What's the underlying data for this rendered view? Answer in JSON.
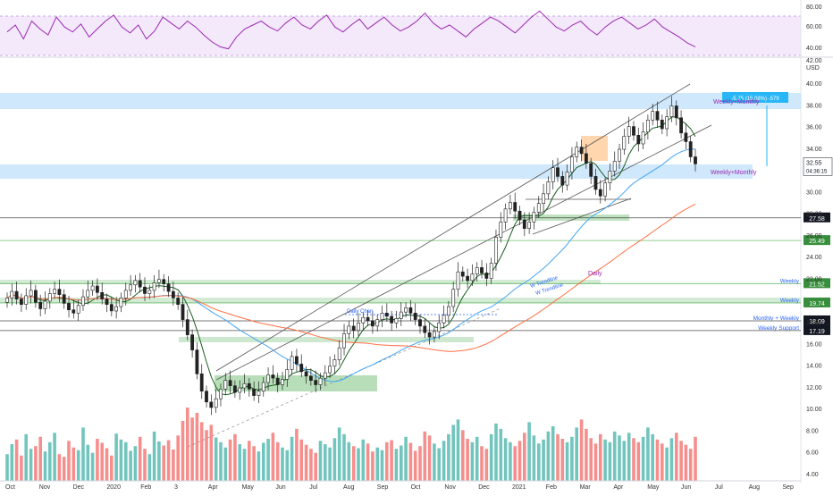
{
  "chart_data": {
    "type": "candlestick",
    "rsi": {
      "ticks": [
        "80.00",
        "60.00",
        "40.00"
      ],
      "series_values": [
        55,
        62,
        48,
        66,
        58,
        52,
        70,
        60,
        55,
        63,
        50,
        58,
        66,
        72,
        60,
        54,
        62,
        48,
        56,
        70,
        64,
        58,
        66,
        60,
        52,
        45,
        40,
        38,
        50,
        58,
        62,
        66,
        60,
        56,
        64,
        70,
        62,
        58,
        66,
        72,
        60,
        55,
        62,
        68,
        58,
        64,
        70,
        62,
        56,
        60,
        66,
        74,
        64,
        58,
        62,
        56,
        50,
        58,
        64,
        70,
        66,
        60,
        54,
        62,
        70,
        76,
        68,
        60,
        56,
        62,
        66,
        58,
        52,
        60,
        66,
        70,
        64,
        58,
        62,
        68,
        60,
        55,
        50,
        44,
        40
      ]
    },
    "price_axis": {
      "unit": "USD",
      "top_label": "42.00",
      "ticks": [
        "40.00",
        "38.00",
        "36.00",
        "34.00",
        "30.00",
        "28.00",
        "26.00",
        "24.00",
        "22.00",
        "18.00",
        "16.00",
        "14.00",
        "12.00",
        "10.00",
        "8.00",
        "6.00",
        "4.00"
      ],
      "ylim": [
        3,
        42
      ]
    },
    "x_axis": {
      "ticks": [
        "Oct",
        "Nov",
        "Dec",
        "2020",
        "Feb",
        "3",
        "Apr",
        "May",
        "Jun",
        "Jul",
        "Aug",
        "Sep",
        "Oct",
        "Nov",
        "Dec",
        "2021",
        "Feb",
        "Mar",
        "Apr",
        "May",
        "Jun",
        "Jul",
        "Aug",
        "Sep"
      ]
    },
    "last_price": {
      "value": 32.55,
      "label": "32.55",
      "countdown": "04:36:15"
    },
    "measure_label": "-5.75 (15.08%) -579",
    "levels": [
      {
        "value": 27.58,
        "label": "27.58"
      },
      {
        "value": 25.49,
        "label": "25.49"
      },
      {
        "value": 21.52,
        "label": "21.52",
        "name": "Weekly"
      },
      {
        "value": 19.74,
        "label": "19.74",
        "name": "Weekly"
      },
      {
        "value": 18.09,
        "label": "18.09",
        "name": "Monthly + Weekly"
      },
      {
        "value": 17.19,
        "label": "17.19",
        "name": "Weekly Support"
      }
    ],
    "zone_labels": {
      "upper": "Weekly+Monthly",
      "lower": "Weekly+Monthly",
      "daily": "Daily"
    },
    "trend_labels": [
      "W Trendline",
      "W Trendline"
    ],
    "channel_label": "Daily Chan",
    "closes": [
      20.2,
      20.8,
      20.1,
      19.6,
      20.4,
      20.9,
      19.8,
      19.2,
      19.9,
      20.6,
      21.0,
      20.5,
      19.7,
      19.1,
      18.8,
      19.5,
      20.3,
      20.9,
      21.3,
      20.7,
      20.1,
      19.6,
      19.0,
      19.4,
      20.2,
      20.9,
      21.4,
      21.8,
      21.2,
      20.6,
      20.9,
      21.6,
      21.9,
      21.5,
      20.8,
      20.2,
      19.6,
      18.2,
      16.8,
      15.4,
      13.2,
      11.6,
      10.6,
      10.1,
      10.9,
      11.8,
      12.6,
      12.1,
      11.5,
      11.9,
      12.3,
      11.8,
      11.2,
      11.6,
      12.4,
      13.1,
      12.8,
      12.2,
      12.7,
      13.6,
      14.8,
      14.1,
      13.4,
      13.0,
      12.6,
      12.2,
      12.8,
      13.3,
      13.9,
      14.5,
      15.6,
      16.9,
      17.6,
      17.2,
      17.9,
      18.4,
      18.1,
      17.6,
      18.2,
      18.8,
      18.5,
      17.9,
      18.3,
      18.9,
      19.3,
      18.8,
      18.2,
      17.6,
      17.0,
      16.6,
      17.1,
      17.9,
      18.6,
      19.4,
      21.0,
      22.6,
      22.2,
      21.8,
      22.4,
      23.0,
      22.5,
      22.0,
      23.4,
      25.8,
      27.2,
      28.4,
      29.0,
      28.2,
      27.4,
      26.6,
      27.2,
      28.1,
      28.9,
      29.8,
      30.9,
      32.2,
      31.4,
      30.6,
      31.8,
      33.2,
      34.1,
      33.5,
      32.6,
      31.4,
      30.2,
      29.6,
      30.8,
      31.9,
      32.8,
      33.9,
      35.1,
      36.0,
      35.2,
      34.4,
      35.5,
      36.6,
      37.4,
      36.6,
      35.8,
      36.9,
      37.9,
      36.8,
      35.4,
      34.6,
      33.2,
      32.55
    ],
    "volumes": [
      40,
      55,
      62,
      38,
      70,
      48,
      52,
      66,
      44,
      58,
      72,
      40,
      36,
      60,
      50,
      46,
      80,
      54,
      42,
      63,
      57,
      49,
      38,
      71,
      62,
      58,
      45,
      52,
      66,
      48,
      40,
      74,
      59,
      53,
      61,
      47,
      68,
      90,
      110,
      95,
      102,
      88,
      76,
      84,
      65,
      58,
      50,
      62,
      70,
      55,
      48,
      60,
      52,
      44,
      57,
      63,
      72,
      58,
      50,
      46,
      66,
      78,
      62,
      54,
      48,
      42,
      60,
      55,
      50,
      64,
      80,
      70,
      58,
      52,
      49,
      62,
      56,
      44,
      50,
      46,
      58,
      61,
      48,
      53,
      66,
      57,
      45,
      52,
      74,
      68,
      56,
      49,
      60,
      70,
      84,
      92,
      76,
      63,
      58,
      66,
      52,
      48,
      70,
      86,
      78,
      64,
      58,
      52,
      60,
      72,
      88,
      68,
      56,
      62,
      74,
      82,
      70,
      63,
      58,
      66,
      80,
      92,
      78,
      64,
      56,
      70,
      62,
      58,
      74,
      68,
      60,
      72,
      64,
      58,
      66,
      80,
      70,
      62,
      56,
      50,
      64,
      72,
      60,
      54,
      48,
      66
    ]
  }
}
